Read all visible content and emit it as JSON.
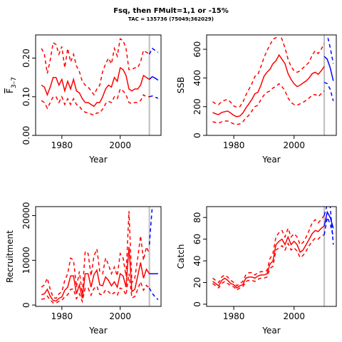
{
  "title": "Fsq, then FMult=1,1 or -15%",
  "subtitle": "TAC = 135736 (75049;362029)",
  "colors": {
    "historic": "#ff0000",
    "forecast": "#0000ff",
    "marker": "#bebebe"
  },
  "chart_data": [
    {
      "id": "fbar",
      "type": "line",
      "xlabel": "Year",
      "ylabel": "F̅ 3–7",
      "ylabel_main": "F",
      "ylabel_sub": "3–7",
      "xlim": [
        1971,
        2014
      ],
      "ylim": [
        0,
        0.26
      ],
      "xticks": [
        1980,
        2000
      ],
      "xtick_labels": [
        "1980",
        "2000"
      ],
      "yticks": [
        0,
        0.1,
        0.2
      ],
      "ytick_labels": [
        "0.00",
        "0.10",
        "0.20"
      ],
      "vline": 2010,
      "x": [
        1973,
        1974,
        1975,
        1976,
        1977,
        1978,
        1979,
        1980,
        1981,
        1982,
        1983,
        1984,
        1985,
        1986,
        1987,
        1988,
        1989,
        1990,
        1991,
        1992,
        1993,
        1994,
        1995,
        1996,
        1997,
        1998,
        1999,
        2000,
        2001,
        2002,
        2003,
        2004,
        2005,
        2006,
        2007,
        2008,
        2009,
        2010
      ],
      "series": [
        {
          "role": "median",
          "values": [
            0.13,
            0.125,
            0.105,
            0.125,
            0.15,
            0.15,
            0.13,
            0.145,
            0.115,
            0.14,
            0.12,
            0.145,
            0.115,
            0.11,
            0.095,
            0.085,
            0.085,
            0.08,
            0.075,
            0.085,
            0.085,
            0.1,
            0.12,
            0.13,
            0.125,
            0.15,
            0.14,
            0.175,
            0.17,
            0.155,
            0.12,
            0.115,
            0.12,
            0.12,
            0.13,
            0.155,
            0.15,
            0.145
          ]
        },
        {
          "role": "upper",
          "values": [
            0.225,
            0.21,
            0.16,
            0.195,
            0.24,
            0.235,
            0.21,
            0.23,
            0.175,
            0.225,
            0.19,
            0.21,
            0.18,
            0.165,
            0.14,
            0.13,
            0.125,
            0.115,
            0.105,
            0.12,
            0.13,
            0.165,
            0.185,
            0.2,
            0.185,
            0.225,
            0.205,
            0.25,
            0.245,
            0.225,
            0.17,
            0.17,
            0.175,
            0.175,
            0.19,
            0.22,
            0.215,
            0.21
          ]
        },
        {
          "role": "lower",
          "values": [
            0.09,
            0.085,
            0.07,
            0.085,
            0.1,
            0.1,
            0.085,
            0.1,
            0.08,
            0.095,
            0.08,
            0.095,
            0.08,
            0.075,
            0.065,
            0.06,
            0.058,
            0.055,
            0.052,
            0.058,
            0.058,
            0.068,
            0.082,
            0.088,
            0.085,
            0.1,
            0.095,
            0.12,
            0.115,
            0.105,
            0.085,
            0.082,
            0.085,
            0.085,
            0.09,
            0.105,
            0.1,
            0.1
          ]
        }
      ],
      "forecast_x": [
        2010,
        2011,
        2012,
        2013
      ],
      "forecast_series": [
        {
          "role": "median",
          "values": [
            0.145,
            0.152,
            0.148,
            0.143
          ]
        },
        {
          "role": "upper",
          "values": [
            0.21,
            0.225,
            0.22,
            0.215
          ]
        },
        {
          "role": "lower",
          "values": [
            0.1,
            0.102,
            0.099,
            0.096
          ]
        }
      ]
    },
    {
      "id": "ssb",
      "type": "line",
      "xlabel": "Year",
      "ylabel": "SSB",
      "xlim": [
        1971,
        2014
      ],
      "ylim": [
        0,
        700
      ],
      "xticks": [
        1980,
        2000
      ],
      "xtick_labels": [
        "1980",
        "2000"
      ],
      "yticks": [
        0,
        200,
        400,
        600
      ],
      "ytick_labels": [
        "0",
        "200",
        "400",
        "600"
      ],
      "vline": 2010,
      "x": [
        1973,
        1974,
        1975,
        1976,
        1977,
        1978,
        1979,
        1980,
        1981,
        1982,
        1983,
        1984,
        1985,
        1986,
        1987,
        1988,
        1989,
        1990,
        1991,
        1992,
        1993,
        1994,
        1995,
        1996,
        1997,
        1998,
        1999,
        2000,
        2001,
        2002,
        2003,
        2004,
        2005,
        2006,
        2007,
        2008,
        2009,
        2010
      ],
      "series": [
        {
          "role": "median",
          "values": [
            160,
            150,
            145,
            160,
            165,
            170,
            155,
            140,
            130,
            135,
            155,
            190,
            220,
            250,
            290,
            300,
            350,
            410,
            440,
            460,
            500,
            520,
            560,
            530,
            500,
            430,
            390,
            360,
            340,
            350,
            365,
            380,
            400,
            430,
            440,
            425,
            450,
            480
          ]
        },
        {
          "role": "upper",
          "values": [
            235,
            220,
            215,
            235,
            245,
            250,
            230,
            205,
            195,
            200,
            230,
            280,
            320,
            360,
            410,
            425,
            480,
            540,
            590,
            630,
            670,
            680,
            710,
            670,
            610,
            530,
            480,
            450,
            440,
            450,
            470,
            490,
            510,
            560,
            590,
            570,
            600,
            640
          ]
        },
        {
          "role": "lower",
          "values": [
            95,
            90,
            85,
            95,
            100,
            100,
            90,
            80,
            75,
            80,
            95,
            120,
            140,
            170,
            200,
            210,
            250,
            280,
            300,
            310,
            330,
            340,
            360,
            340,
            310,
            260,
            230,
            215,
            210,
            220,
            230,
            245,
            260,
            280,
            285,
            270,
            290,
            310
          ]
        }
      ],
      "forecast_x": [
        2010,
        2011,
        2012,
        2013
      ],
      "forecast_series": [
        {
          "role": "median",
          "values": [
            550,
            530,
            470,
            380
          ]
        },
        {
          "role": "upper",
          "values": [
            710,
            700,
            610,
            500
          ]
        },
        {
          "role": "lower",
          "values": [
            370,
            360,
            320,
            240
          ]
        }
      ]
    },
    {
      "id": "recruitment",
      "type": "line",
      "xlabel": "Year",
      "ylabel": "Recruitment",
      "xlim": [
        1971,
        2014
      ],
      "ylim": [
        -300,
        22000
      ],
      "xticks": [
        1980,
        2000
      ],
      "xtick_labels": [
        "1980",
        "2000"
      ],
      "yticks": [
        0,
        10000,
        20000
      ],
      "ytick_labels": [
        "0",
        "10000",
        "20000"
      ],
      "vline": 2010,
      "x": [
        1973,
        1974,
        1975,
        1976,
        1977,
        1978,
        1979,
        1980,
        1981,
        1982,
        1983,
        1984,
        1985,
        1986,
        1987,
        1988,
        1989,
        1990,
        1991,
        1992,
        1993,
        1994,
        1995,
        1996,
        1997,
        1998,
        1999,
        2000,
        2001,
        2002,
        2003,
        2004,
        2005,
        2006,
        2007,
        2008,
        2009,
        2010
      ],
      "series": [
        {
          "role": "median",
          "values": [
            2300,
            2500,
            3500,
            2000,
            1000,
            900,
            1500,
            1800,
            3300,
            4000,
            6500,
            6500,
            2500,
            4500,
            1500,
            7000,
            7000,
            4000,
            6800,
            7800,
            4500,
            4300,
            6300,
            5500,
            4300,
            5200,
            4000,
            7000,
            6500,
            4000,
            13000,
            3000,
            3500,
            6500,
            9500,
            6000,
            8000,
            7000
          ]
        },
        {
          "role": "upper",
          "values": [
            4000,
            4500,
            6000,
            3500,
            1700,
            1500,
            2500,
            3000,
            5500,
            7000,
            10500,
            10000,
            4000,
            7500,
            2500,
            12000,
            11500,
            6500,
            11000,
            12500,
            7500,
            7000,
            10500,
            9000,
            7000,
            8500,
            6500,
            11500,
            10500,
            6500,
            21000,
            5000,
            6000,
            10500,
            15500,
            10000,
            13000,
            11500
          ]
        },
        {
          "role": "lower",
          "values": [
            1300,
            1400,
            2000,
            1100,
            500,
            450,
            850,
            1000,
            1900,
            2300,
            3500,
            3600,
            1400,
            2500,
            800,
            3800,
            3800,
            2200,
            3700,
            4200,
            2400,
            2300,
            3400,
            3000,
            2300,
            2800,
            2200,
            3800,
            3500,
            2200,
            7000,
            1600,
            1900,
            3500,
            5200,
            3300,
            4400,
            3800
          ]
        }
      ],
      "forecast_x": [
        2010,
        2011,
        2012,
        2013
      ],
      "forecast_series": [
        {
          "role": "median",
          "values": [
            7000,
            7000,
            7000,
            7000
          ]
        },
        {
          "role": "upper",
          "values": [
            13500,
            22000,
            24000,
            24000
          ]
        },
        {
          "role": "lower",
          "values": [
            3800,
            2600,
            1800,
            1200
          ]
        }
      ]
    },
    {
      "id": "catch",
      "type": "line",
      "xlabel": "Year",
      "ylabel": "Catch",
      "xlim": [
        1971,
        2014
      ],
      "ylim": [
        -2,
        90
      ],
      "xticks": [
        1980,
        2000
      ],
      "xtick_labels": [
        "1980",
        "2000"
      ],
      "yticks": [
        0,
        20,
        40,
        60,
        80
      ],
      "ytick_labels": [
        "0",
        "20",
        "40",
        "60",
        "80"
      ],
      "vline": 2010,
      "x": [
        1973,
        1974,
        1975,
        1976,
        1977,
        1978,
        1979,
        1980,
        1981,
        1982,
        1983,
        1984,
        1985,
        1986,
        1987,
        1988,
        1989,
        1990,
        1991,
        1992,
        1993,
        1994,
        1995,
        1996,
        1997,
        1998,
        1999,
        2000,
        2001,
        2002,
        2003,
        2004,
        2005,
        2006,
        2007,
        2008,
        2009,
        2010
      ],
      "series": [
        {
          "role": "median",
          "values": [
            21,
            19,
            17,
            22,
            24,
            22,
            19,
            18,
            15,
            17,
            18,
            24,
            25,
            25,
            24,
            26,
            27,
            27,
            28,
            37,
            40,
            55,
            58,
            60,
            55,
            62,
            55,
            58,
            55,
            48,
            50,
            55,
            60,
            65,
            68,
            67,
            70,
            72
          ]
        },
        {
          "role": "upper",
          "values": [
            24,
            22,
            20,
            25,
            27,
            25,
            22,
            20,
            17,
            19,
            21,
            27,
            29,
            29,
            27,
            29,
            30,
            30,
            31,
            42,
            47,
            62,
            66,
            68,
            62,
            70,
            62,
            65,
            62,
            55,
            57,
            62,
            68,
            75,
            78,
            75,
            78,
            82
          ]
        },
        {
          "role": "lower",
          "values": [
            19,
            17,
            15,
            19,
            21,
            19,
            17,
            16,
            13,
            15,
            16,
            21,
            22,
            22,
            21,
            23,
            24,
            24,
            25,
            33,
            35,
            50,
            52,
            54,
            50,
            56,
            50,
            52,
            49,
            43,
            45,
            49,
            54,
            58,
            61,
            60,
            63,
            64
          ]
        }
      ],
      "forecast_x": [
        2010,
        2011,
        2012,
        2013
      ],
      "forecast_series": [
        {
          "role": "median",
          "values": [
            72,
            85,
            80,
            70
          ]
        },
        {
          "role": "upper",
          "values": [
            82,
            92,
            90,
            55
          ]
        },
        {
          "role": "lower",
          "values": [
            64,
            80,
            74,
            62
          ]
        }
      ]
    }
  ]
}
